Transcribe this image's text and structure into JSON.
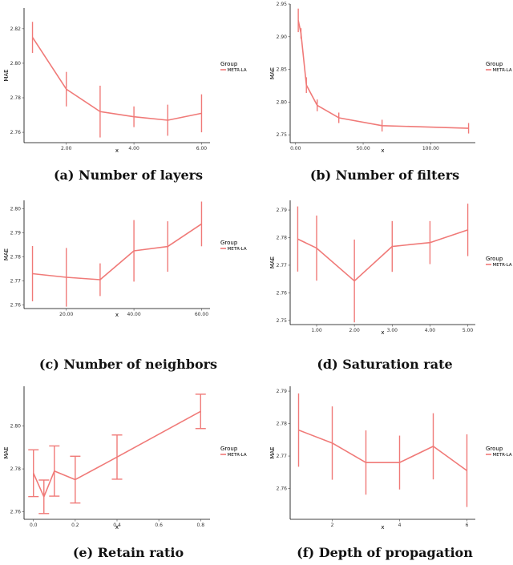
{
  "colors": {
    "series": "#f07a78"
  },
  "chart_data": [
    {
      "type": "line",
      "caption": "(a) Number of layers",
      "xlabel": "x",
      "ylabel": "MAE",
      "legend": {
        "title": "Group",
        "label": "METR-LA",
        "placement": "right"
      },
      "xlim": [
        0.75,
        6.25
      ],
      "ylim": [
        2.754,
        2.832
      ],
      "xticks": [
        2,
        4,
        6
      ],
      "yticks": [
        2.76,
        2.78,
        2.8,
        2.82
      ],
      "tick_decimals": 2,
      "cap_frac": 0,
      "series": [
        {
          "name": "METR-LA",
          "x": [
            1,
            2,
            3,
            4,
            5,
            6
          ],
          "y": [
            2.815,
            2.785,
            2.772,
            2.769,
            2.767,
            2.771
          ],
          "err": [
            0.009,
            0.01,
            0.015,
            0.006,
            0.009,
            0.011
          ]
        }
      ]
    },
    {
      "type": "line",
      "caption": "(b) Number of filters",
      "xlabel": "x",
      "ylabel": "MAE",
      "legend": {
        "title": "Group",
        "label": "METR-LA",
        "placement": "right"
      },
      "xlim": [
        -4,
        133
      ],
      "ylim": [
        2.738,
        2.95
      ],
      "xticks": [
        0,
        50,
        100
      ],
      "yticks": [
        2.75,
        2.8,
        2.85,
        2.9,
        2.95
      ],
      "tick_decimals": 2,
      "cap_frac": 0,
      "series": [
        {
          "name": "METR-LA",
          "x": [
            2,
            4,
            8,
            16,
            32,
            64,
            128
          ],
          "y": [
            2.925,
            2.905,
            2.826,
            2.795,
            2.776,
            2.764,
            2.76
          ],
          "err": [
            0.018,
            0.008,
            0.012,
            0.009,
            0.008,
            0.009,
            0.008
          ]
        }
      ]
    },
    {
      "type": "line",
      "caption": "(c) Number of neighbors",
      "xlabel": "x",
      "ylabel": "MAE",
      "legend": {
        "title": "Group",
        "label": "METR-LA",
        "placement": "right"
      },
      "xlim": [
        7.5,
        62.5
      ],
      "ylim": [
        2.7585,
        2.8035
      ],
      "xticks": [
        20,
        40,
        60
      ],
      "yticks": [
        2.76,
        2.77,
        2.78,
        2.79,
        2.8
      ],
      "tick_decimals": 2,
      "cap_frac": 0,
      "series": [
        {
          "name": "METR-LA",
          "x": [
            10,
            20,
            30,
            40,
            50,
            60
          ],
          "y": [
            2.773,
            2.7715,
            2.7705,
            2.7825,
            2.7843,
            2.7937
          ],
          "err": [
            0.0115,
            0.0122,
            0.0068,
            0.0128,
            0.0105,
            0.0093
          ]
        }
      ]
    },
    {
      "type": "line",
      "caption": "(d) Saturation rate",
      "xlabel": "x",
      "ylabel": "MAE",
      "legend": {
        "title": "Group",
        "label": "METR-LA",
        "placement": "right"
      },
      "xlim": [
        0.3,
        5.2
      ],
      "ylim": [
        2.7485,
        2.7935
      ],
      "xticks": [
        1,
        2,
        3,
        4,
        5
      ],
      "yticks": [
        2.75,
        2.76,
        2.77,
        2.78,
        2.79
      ],
      "tick_decimals": 2,
      "cap_frac": 0,
      "series": [
        {
          "name": "METR-LA",
          "x": [
            0.5,
            1,
            2,
            3,
            4,
            5
          ],
          "y": [
            2.7795,
            2.7762,
            2.7643,
            2.7768,
            2.7782,
            2.7828
          ],
          "err": [
            0.0118,
            0.0118,
            0.015,
            0.0092,
            0.0078,
            0.0095
          ]
        }
      ]
    },
    {
      "type": "line",
      "caption": "(e) Retain ratio",
      "xlabel": "x",
      "ylabel": "MAE",
      "legend": {
        "title": "Group",
        "label": "METR-LA",
        "placement": "right"
      },
      "xlim": [
        -0.045,
        0.845
      ],
      "ylim": [
        2.7565,
        2.8185
      ],
      "xticks": [
        0.0,
        0.2,
        0.4,
        0.6,
        0.8
      ],
      "yticks": [
        2.76,
        2.78,
        2.8
      ],
      "tick_decimals": 1,
      "ytick_decimals": 2,
      "cap_frac": 0.028,
      "series": [
        {
          "name": "METR-LA",
          "x": [
            0.0,
            0.05,
            0.1,
            0.2,
            0.4,
            0.8
          ],
          "y": [
            2.778,
            2.767,
            2.779,
            2.775,
            2.7855,
            2.8068
          ],
          "err": [
            0.0109,
            0.0078,
            0.0117,
            0.0109,
            0.0103,
            0.008
          ]
        }
      ]
    },
    {
      "type": "line",
      "caption": "(f) Depth of propagation",
      "xlabel": "x",
      "ylabel": "MAE",
      "legend": {
        "title": "Group",
        "label": "METR-LA",
        "placement": "right"
      },
      "xlim": [
        0.75,
        6.25
      ],
      "ylim": [
        2.7505,
        2.7915
      ],
      "xticks": [
        2,
        4,
        6
      ],
      "yticks": [
        2.76,
        2.77,
        2.78,
        2.79
      ],
      "tick_decimals": 0,
      "ytick_decimals": 2,
      "cap_frac": 0,
      "series": [
        {
          "name": "METR-LA",
          "x": [
            1,
            2,
            3,
            4,
            5,
            6
          ],
          "y": [
            2.778,
            2.774,
            2.768,
            2.768,
            2.773,
            2.7655
          ],
          "err": [
            0.0113,
            0.0113,
            0.0099,
            0.0083,
            0.0102,
            0.0112
          ]
        }
      ]
    }
  ]
}
